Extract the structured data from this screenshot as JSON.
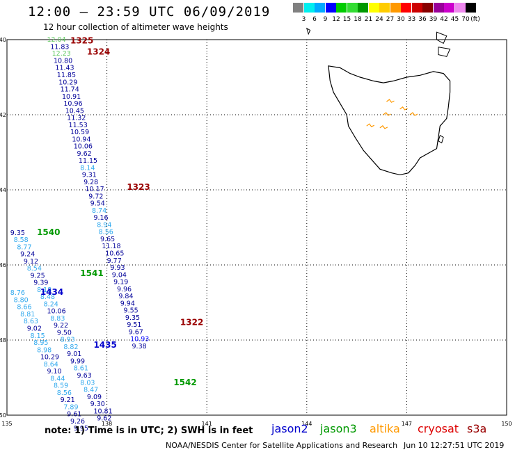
{
  "header": {
    "title": "12:00 – 23:59 UTC 06/09/2019",
    "subtitle": "12 hour collection of altimeter wave heights"
  },
  "footer": {
    "note": "note: 1) Time is in UTC; 2) SWH is in feet",
    "credit": "NOAA/NESDIS Center for Satellite Applications and Research",
    "timestamp": "Jun 10 12:27:51 UTC 2019"
  },
  "satellites": [
    {
      "name": "jason2",
      "color": "#0000cc"
    },
    {
      "name": "jason3",
      "color": "#009900"
    },
    {
      "name": "altika",
      "color": "#ff9900"
    },
    {
      "name": "cryosat",
      "color": "#dd0000"
    },
    {
      "name": "s3a",
      "color": "#990000"
    }
  ],
  "colorbar": {
    "unit": "(ft)",
    "labels": [
      "3",
      "6",
      "9",
      "12",
      "15",
      "18",
      "21",
      "24",
      "27",
      "30",
      "33",
      "36",
      "39",
      "42",
      "45",
      "70"
    ],
    "colors": [
      "#808080",
      "#00eeee",
      "#00aaff",
      "#0000ff",
      "#00cc00",
      "#33dd33",
      "#009900",
      "#ffff00",
      "#ffcc00",
      "#ff9900",
      "#ff0000",
      "#cc0000",
      "#880000",
      "#990099",
      "#cc00cc",
      "#ee88ee",
      "#000000"
    ]
  },
  "map": {
    "lon_range": [
      135,
      150
    ],
    "lat_range": [
      -50,
      -40
    ],
    "lon_ticks": [
      "135",
      "138",
      "141",
      "144",
      "147",
      "150"
    ],
    "lat_ticks": [
      "-40",
      "-42",
      "-44",
      "-46",
      "-48",
      "-50"
    ],
    "orbits": [
      {
        "label": "1325",
        "lon": 136.9,
        "lat": -40.1,
        "color": "#990000"
      },
      {
        "label": "1324",
        "lon": 137.4,
        "lat": -40.4,
        "color": "#990000"
      },
      {
        "label": "1323",
        "lon": 138.6,
        "lat": -44.0,
        "color": "#990000"
      },
      {
        "label": "1322",
        "lon": 140.2,
        "lat": -47.6,
        "color": "#990000"
      },
      {
        "label": "1540",
        "lon": 135.9,
        "lat": -45.2,
        "color": "#009900"
      },
      {
        "label": "1541",
        "lon": 137.2,
        "lat": -46.3,
        "color": "#009900"
      },
      {
        "label": "1542",
        "lon": 140.0,
        "lat": -49.2,
        "color": "#009900"
      },
      {
        "label": "1434",
        "lon": 136.0,
        "lat": -46.8,
        "color": "#0000cc"
      },
      {
        "label": "1435",
        "lon": 137.6,
        "lat": -48.2,
        "color": "#0000cc"
      }
    ],
    "tracks": [
      {
        "name": "track-1325",
        "readings": [
          {
            "lon": 136.2,
            "lat": -40.06,
            "swh": "12.04",
            "color": "#66cc66"
          },
          {
            "lon": 136.3,
            "lat": -40.25,
            "swh": "11.83",
            "color": "#000099"
          },
          {
            "lon": 136.35,
            "lat": -40.43,
            "swh": "12.23",
            "color": "#66cc66"
          },
          {
            "lon": 136.4,
            "lat": -40.62,
            "swh": "10.80",
            "color": "#000099"
          },
          {
            "lon": 136.45,
            "lat": -40.81,
            "swh": "11.43",
            "color": "#000099"
          },
          {
            "lon": 136.5,
            "lat": -41.0,
            "swh": "11.85",
            "color": "#000099"
          },
          {
            "lon": 136.55,
            "lat": -41.19,
            "swh": "10.29",
            "color": "#000099"
          },
          {
            "lon": 136.6,
            "lat": -41.38,
            "swh": "11.74",
            "color": "#000099"
          },
          {
            "lon": 136.65,
            "lat": -41.57,
            "swh": "10.91",
            "color": "#000099"
          },
          {
            "lon": 136.7,
            "lat": -41.76,
            "swh": "10.96",
            "color": "#000099"
          },
          {
            "lon": 136.75,
            "lat": -41.95,
            "swh": "10.45",
            "color": "#000099"
          },
          {
            "lon": 136.8,
            "lat": -42.14,
            "swh": "11.32",
            "color": "#000099"
          },
          {
            "lon": 136.85,
            "lat": -42.33,
            "swh": "11.53",
            "color": "#000099"
          },
          {
            "lon": 136.9,
            "lat": -42.52,
            "swh": "10.59",
            "color": "#000099"
          },
          {
            "lon": 136.95,
            "lat": -42.71,
            "swh": "10.94",
            "color": "#000099"
          },
          {
            "lon": 137.0,
            "lat": -42.9,
            "swh": "10.06",
            "color": "#000099"
          },
          {
            "lon": 137.1,
            "lat": -43.09,
            "swh": "9.62",
            "color": "#000099"
          },
          {
            "lon": 137.15,
            "lat": -43.28,
            "swh": "11.15",
            "color": "#000099"
          },
          {
            "lon": 137.2,
            "lat": -43.47,
            "swh": "8.14",
            "color": "#33aaee"
          },
          {
            "lon": 137.25,
            "lat": -43.66,
            "swh": "9.31",
            "color": "#000099"
          },
          {
            "lon": 137.3,
            "lat": -43.85,
            "swh": "9.28",
            "color": "#000099"
          },
          {
            "lon": 137.35,
            "lat": -44.04,
            "swh": "10.17",
            "color": "#000099"
          },
          {
            "lon": 137.45,
            "lat": -44.23,
            "swh": "9.72",
            "color": "#000099"
          },
          {
            "lon": 137.5,
            "lat": -44.42,
            "swh": "9.54",
            "color": "#000099"
          },
          {
            "lon": 137.55,
            "lat": -44.61,
            "swh": "8.74",
            "color": "#33aaee"
          },
          {
            "lon": 137.6,
            "lat": -44.8,
            "swh": "9.16",
            "color": "#000099"
          },
          {
            "lon": 137.7,
            "lat": -44.99,
            "swh": "8.94",
            "color": "#33aaee"
          },
          {
            "lon": 137.75,
            "lat": -45.18,
            "swh": "8.56",
            "color": "#33aaee"
          },
          {
            "lon": 137.8,
            "lat": -45.37,
            "swh": "9.65",
            "color": "#000099"
          },
          {
            "lon": 137.85,
            "lat": -45.56,
            "swh": "11.18",
            "color": "#000099"
          },
          {
            "lon": 137.95,
            "lat": -45.75,
            "swh": "10.65",
            "color": "#000099"
          },
          {
            "lon": 138.0,
            "lat": -45.94,
            "swh": "9.77",
            "color": "#000099"
          },
          {
            "lon": 138.1,
            "lat": -46.13,
            "swh": "9.93",
            "color": "#000099"
          },
          {
            "lon": 138.15,
            "lat": -46.32,
            "swh": "9.04",
            "color": "#000099"
          },
          {
            "lon": 138.2,
            "lat": -46.51,
            "swh": "9.19",
            "color": "#000099"
          },
          {
            "lon": 138.3,
            "lat": -46.7,
            "swh": "9.96",
            "color": "#000099"
          },
          {
            "lon": 138.35,
            "lat": -46.89,
            "swh": "9.84",
            "color": "#000099"
          },
          {
            "lon": 138.4,
            "lat": -47.08,
            "swh": "9.94",
            "color": "#000099"
          },
          {
            "lon": 138.5,
            "lat": -47.27,
            "swh": "9.55",
            "color": "#000099"
          },
          {
            "lon": 138.55,
            "lat": -47.46,
            "swh": "9.35",
            "color": "#000099"
          },
          {
            "lon": 138.6,
            "lat": -47.65,
            "swh": "9.51",
            "color": "#000099"
          },
          {
            "lon": 138.65,
            "lat": -47.84,
            "swh": "9.67",
            "color": "#000099"
          },
          {
            "lon": 138.7,
            "lat": -48.03,
            "swh": "10.93",
            "color": "#0000ff"
          },
          {
            "lon": 138.75,
            "lat": -48.22,
            "swh": "9.38",
            "color": "#000099"
          }
        ]
      },
      {
        "name": "track-1541",
        "readings": [
          {
            "lon": 135.1,
            "lat": -45.2,
            "swh": "9.35",
            "color": "#000099"
          },
          {
            "lon": 135.2,
            "lat": -45.39,
            "swh": "8.58",
            "color": "#33aaee"
          },
          {
            "lon": 135.3,
            "lat": -45.58,
            "swh": "8.77",
            "color": "#33aaee"
          },
          {
            "lon": 135.4,
            "lat": -45.77,
            "swh": "9.24",
            "color": "#000099"
          },
          {
            "lon": 135.5,
            "lat": -45.96,
            "swh": "9.12",
            "color": "#000099"
          },
          {
            "lon": 135.6,
            "lat": -46.15,
            "swh": "8.54",
            "color": "#33aaee"
          },
          {
            "lon": 135.7,
            "lat": -46.34,
            "swh": "9.25",
            "color": "#000099"
          },
          {
            "lon": 135.8,
            "lat": -46.53,
            "swh": "9.39",
            "color": "#000099"
          },
          {
            "lon": 135.9,
            "lat": -46.72,
            "swh": "8.18",
            "color": "#33aaee"
          },
          {
            "lon": 136.0,
            "lat": -46.91,
            "swh": "8.48",
            "color": "#33aaee"
          },
          {
            "lon": 136.1,
            "lat": -47.1,
            "swh": "8.24",
            "color": "#33aaee"
          },
          {
            "lon": 136.2,
            "lat": -47.29,
            "swh": "10.06",
            "color": "#000099"
          },
          {
            "lon": 136.3,
            "lat": -47.48,
            "swh": "8.83",
            "color": "#33aaee"
          },
          {
            "lon": 136.4,
            "lat": -47.67,
            "swh": "9.22",
            "color": "#000099"
          },
          {
            "lon": 136.5,
            "lat": -47.86,
            "swh": "9.50",
            "color": "#000099"
          },
          {
            "lon": 136.6,
            "lat": -48.05,
            "swh": "8.93",
            "color": "#33aaee"
          },
          {
            "lon": 136.7,
            "lat": -48.24,
            "swh": "8.82",
            "color": "#33aaee"
          },
          {
            "lon": 136.8,
            "lat": -48.43,
            "swh": "9.01",
            "color": "#000099"
          },
          {
            "lon": 136.9,
            "lat": -48.62,
            "swh": "9.99",
            "color": "#000099"
          },
          {
            "lon": 137.0,
            "lat": -48.81,
            "swh": "8.61",
            "color": "#33aaee"
          },
          {
            "lon": 137.1,
            "lat": -49.0,
            "swh": "9.63",
            "color": "#000099"
          },
          {
            "lon": 137.2,
            "lat": -49.19,
            "swh": "8.03",
            "color": "#33aaee"
          },
          {
            "lon": 137.3,
            "lat": -49.38,
            "swh": "8.47",
            "color": "#33aaee"
          },
          {
            "lon": 137.4,
            "lat": -49.57,
            "swh": "9.09",
            "color": "#000099"
          },
          {
            "lon": 137.5,
            "lat": -49.76,
            "swh": "9.30",
            "color": "#000099"
          },
          {
            "lon": 137.6,
            "lat": -49.95,
            "swh": "10.81",
            "color": "#000099"
          },
          {
            "lon": 137.7,
            "lat": -50.14,
            "swh": "9.62",
            "color": "#000099"
          }
        ]
      },
      {
        "name": "track-1435",
        "readings": [
          {
            "lon": 135.1,
            "lat": -46.8,
            "swh": "8.76",
            "color": "#33aaee"
          },
          {
            "lon": 135.2,
            "lat": -46.99,
            "swh": "8.80",
            "color": "#33aaee"
          },
          {
            "lon": 135.3,
            "lat": -47.18,
            "swh": "8.66",
            "color": "#33aaee"
          },
          {
            "lon": 135.4,
            "lat": -47.37,
            "swh": "8.81",
            "color": "#33aaee"
          },
          {
            "lon": 135.5,
            "lat": -47.56,
            "swh": "8.63",
            "color": "#33aaee"
          },
          {
            "lon": 135.6,
            "lat": -47.75,
            "swh": "9.02",
            "color": "#000099"
          },
          {
            "lon": 135.7,
            "lat": -47.94,
            "swh": "8.15",
            "color": "#33aaee"
          },
          {
            "lon": 135.8,
            "lat": -48.13,
            "swh": "8.95",
            "color": "#33aaee"
          },
          {
            "lon": 135.9,
            "lat": -48.32,
            "swh": "8.98",
            "color": "#33aaee"
          },
          {
            "lon": 136.0,
            "lat": -48.51,
            "swh": "10.29",
            "color": "#000099"
          },
          {
            "lon": 136.1,
            "lat": -48.7,
            "swh": "8.64",
            "color": "#33aaee"
          },
          {
            "lon": 136.2,
            "lat": -48.89,
            "swh": "9.10",
            "color": "#000099"
          },
          {
            "lon": 136.3,
            "lat": -49.08,
            "swh": "8.44",
            "color": "#33aaee"
          },
          {
            "lon": 136.4,
            "lat": -49.27,
            "swh": "8.59",
            "color": "#33aaee"
          },
          {
            "lon": 136.5,
            "lat": -49.46,
            "swh": "8.56",
            "color": "#33aaee"
          },
          {
            "lon": 136.6,
            "lat": -49.65,
            "swh": "9.21",
            "color": "#000099"
          },
          {
            "lon": 136.7,
            "lat": -49.84,
            "swh": "7.89",
            "color": "#33aaee"
          },
          {
            "lon": 136.8,
            "lat": -50.03,
            "swh": "9.61",
            "color": "#000099"
          },
          {
            "lon": 136.9,
            "lat": -50.22,
            "swh": "9.26",
            "color": "#000099"
          },
          {
            "lon": 137.0,
            "lat": -50.41,
            "swh": "9.95",
            "color": "#000099"
          }
        ]
      }
    ]
  }
}
